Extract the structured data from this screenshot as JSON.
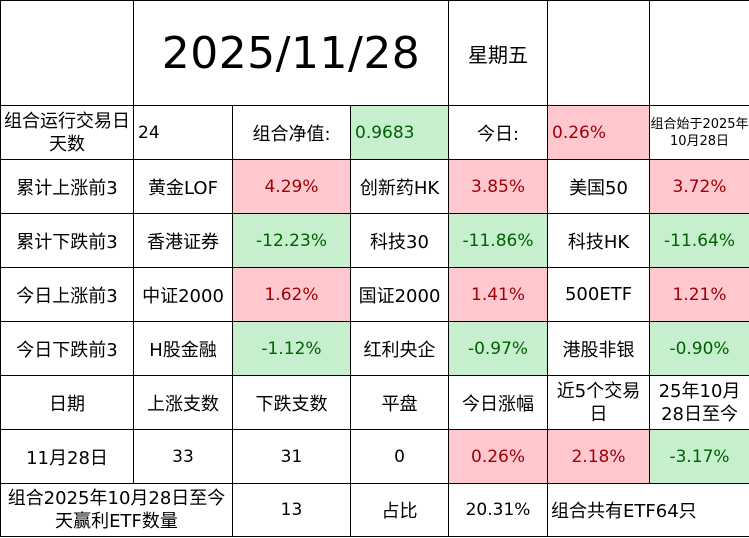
{
  "header": {
    "date": "2025/11/28",
    "weekday": "星期五"
  },
  "summary": {
    "days_label": "组合运行交易日天数",
    "days_value": "24",
    "nav_label": "组合净值:",
    "nav_value": "0.9683",
    "today_label": "今日:",
    "today_value": "0.26%",
    "start_note": "组合始于2025年10月28日"
  },
  "rankings": [
    {
      "label": "累计上涨前3",
      "items": [
        {
          "name": "黄金LOF",
          "value": "4.29%"
        },
        {
          "name": "创新药HK",
          "value": "3.85%"
        },
        {
          "name": "美国50",
          "value": "3.72%"
        }
      ]
    },
    {
      "label": "累计下跌前3",
      "items": [
        {
          "name": "香港证券",
          "value": "-12.23%"
        },
        {
          "name": "科技30",
          "value": "-11.86%"
        },
        {
          "name": "科技HK",
          "value": "-11.64%"
        }
      ]
    },
    {
      "label": "今日上涨前3",
      "items": [
        {
          "name": "中证2000",
          "value": "1.62%"
        },
        {
          "name": "国证2000",
          "value": "1.41%"
        },
        {
          "name": "500ETF",
          "value": "1.21%"
        }
      ]
    },
    {
      "label": "今日下跌前3",
      "items": [
        {
          "name": "H股金融",
          "value": "-1.12%"
        },
        {
          "name": "红利央企",
          "value": "-0.97%"
        },
        {
          "name": "港股非银",
          "value": "-0.90%"
        }
      ]
    }
  ],
  "stats_header": {
    "date": "日期",
    "up_count": "上涨支数",
    "down_count": "下跌支数",
    "flat": "平盘",
    "today_change": "今日涨幅",
    "last5": "近5个交易日",
    "since_start": "25年10月28日至今"
  },
  "stats_row": {
    "date": "11月28日",
    "up_count": "33",
    "down_count": "31",
    "flat": "0",
    "today_change": "0.26%",
    "last5": "2.18%",
    "since_start": "-3.17%"
  },
  "footer": {
    "profit_label": "组合2025年10月28日至今天赢利ETF数量",
    "profit_count": "13",
    "ratio_label": "占比",
    "ratio_value": "20.31%",
    "total_note": "组合共有ETF64只"
  },
  "colors": {
    "up_fill": "#ffc7ce",
    "up_text": "#9c0006",
    "down_fill": "#c6efce",
    "down_text": "#006100"
  }
}
